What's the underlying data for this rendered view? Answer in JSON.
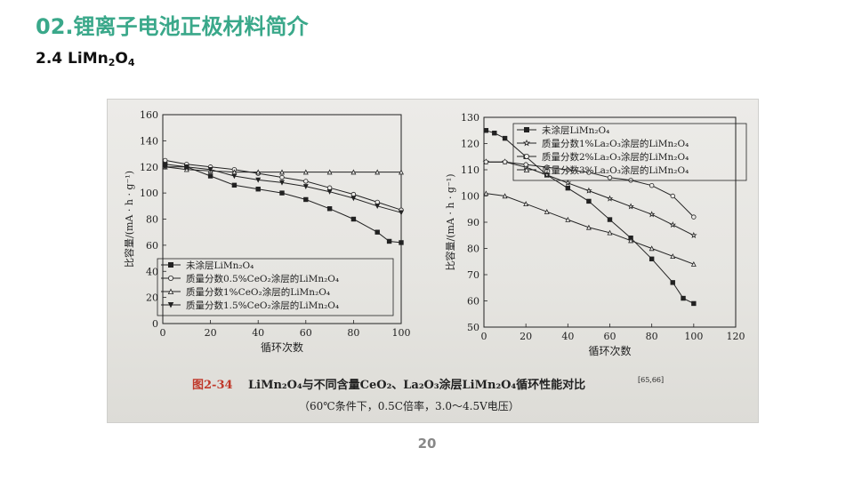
{
  "header": {
    "title": "02.锂离子电池正极材料简介",
    "section_prefix": "2.4 LiMn",
    "section_sub1": "2",
    "section_mid": "O",
    "section_sub2": "4"
  },
  "caption": {
    "fig_no": "图2-34",
    "line1": "LiMn₂O₄与不同含量CeO₂、La₂O₃涂层LiMn₂O₄循环性能对比",
    "ref": "[65,66]",
    "line2": "（60℃条件下，0.5C倍率，3.0～4.5V电压）"
  },
  "page_number": "20",
  "colors": {
    "title": "#3aa88a",
    "fig_label": "#c0392b",
    "ink": "#222222"
  },
  "chart_data": [
    {
      "type": "line",
      "ylabel": "比容量/(mA · h · g⁻¹)",
      "xlabel": "循环次数",
      "xlim": [
        0,
        100
      ],
      "ylim": [
        0,
        160
      ],
      "xticks": [
        0,
        20,
        40,
        60,
        80,
        100
      ],
      "yticks": [
        0,
        20,
        40,
        60,
        80,
        100,
        120,
        140,
        160
      ],
      "legend_position": "bottom-left",
      "series": [
        {
          "name": "未涂层LiMn₂O₄",
          "marker": "square-filled",
          "x": [
            1,
            10,
            20,
            30,
            40,
            50,
            60,
            70,
            80,
            90,
            95,
            100
          ],
          "y": [
            122,
            120,
            113,
            106,
            103,
            100,
            95,
            88,
            80,
            70,
            63,
            62
          ]
        },
        {
          "name": "质量分数0.5%CeO₂涂层的LiMn₂O₄",
          "marker": "circle-open",
          "x": [
            1,
            10,
            20,
            30,
            40,
            50,
            60,
            70,
            80,
            90,
            100
          ],
          "y": [
            125,
            122,
            120,
            118,
            115,
            112,
            109,
            104,
            99,
            93,
            87
          ]
        },
        {
          "name": "质量分数1%CeO₂涂层的LiMn₂O₄",
          "marker": "triangle-up-open",
          "x": [
            1,
            10,
            20,
            30,
            40,
            50,
            60,
            70,
            80,
            90,
            100
          ],
          "y": [
            120,
            118,
            117,
            116,
            116,
            116,
            116,
            116,
            116,
            116,
            116
          ]
        },
        {
          "name": "质量分数1.5%CeO₂涂层的LiMn₂O₄",
          "marker": "triangle-down-filled",
          "x": [
            1,
            10,
            20,
            30,
            40,
            50,
            60,
            70,
            80,
            90,
            100
          ],
          "y": [
            120,
            120,
            118,
            113,
            110,
            108,
            105,
            101,
            96,
            90,
            85
          ]
        }
      ]
    },
    {
      "type": "line",
      "ylabel": "比容量/(mA · h · g⁻¹)",
      "xlabel": "循环次数",
      "xlim": [
        0,
        120
      ],
      "ylim": [
        50,
        130
      ],
      "xticks": [
        0,
        20,
        40,
        60,
        80,
        100,
        120
      ],
      "yticks": [
        50,
        60,
        70,
        80,
        90,
        100,
        110,
        120,
        130
      ],
      "legend_position": "top-right",
      "series": [
        {
          "name": "未涂层LiMn₂O₄",
          "marker": "square-filled",
          "x": [
            1,
            5,
            10,
            20,
            30,
            40,
            50,
            60,
            70,
            80,
            90,
            95,
            100
          ],
          "y": [
            125,
            124,
            122,
            115,
            108,
            103,
            98,
            91,
            84,
            76,
            67,
            61,
            59
          ]
        },
        {
          "name": "质量分数1%La₂O₃涂层的LiMn₂O₄",
          "marker": "star-open",
          "x": [
            1,
            10,
            20,
            30,
            40,
            50,
            60,
            70,
            80,
            90,
            100
          ],
          "y": [
            113,
            113,
            111,
            108,
            105,
            102,
            99,
            96,
            93,
            89,
            85
          ]
        },
        {
          "name": "质量分数2%La₂O₃涂层的LiMn₂O₄",
          "marker": "circle-open",
          "x": [
            1,
            10,
            20,
            30,
            40,
            50,
            60,
            70,
            80,
            90,
            100
          ],
          "y": [
            113,
            113,
            112,
            111,
            110,
            109,
            107,
            106,
            104,
            100,
            92
          ]
        },
        {
          "name": "质量分数3%La₂O₃涂层的LiMn₂O₄",
          "marker": "triangle-up-open",
          "x": [
            1,
            10,
            20,
            30,
            40,
            50,
            60,
            70,
            80,
            90,
            100
          ],
          "y": [
            101,
            100,
            97,
            94,
            91,
            88,
            86,
            83,
            80,
            77,
            74
          ]
        }
      ]
    }
  ]
}
